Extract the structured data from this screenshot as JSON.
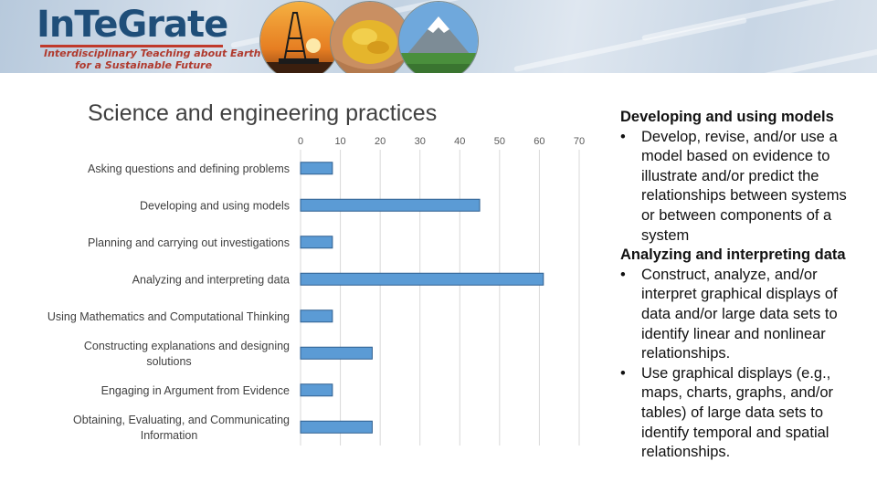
{
  "logo": {
    "name": "InTeGrate",
    "tagline_line1": "Interdisciplinary Teaching about Earth",
    "tagline_line2": "for a Sustainable Future"
  },
  "banner": {
    "photos": [
      "oil-rig-sunset-photo",
      "corn-kernels-in-hands-photo",
      "snowy-mountain-photo"
    ]
  },
  "chart_data": {
    "type": "bar",
    "orientation": "horizontal",
    "title": "Science and engineering practices",
    "categories": [
      "Asking questions and defining problems",
      "Developing and using models",
      "Planning and carrying out investigations",
      "Analyzing and interpreting data",
      "Using Mathematics and Computational Thinking",
      "Constructing explanations and designing solutions",
      "Engaging in Argument from Evidence",
      "Obtaining, Evaluating, and Communicating Information"
    ],
    "values": [
      8,
      45,
      8,
      61,
      8,
      18,
      8,
      18
    ],
    "xlim": [
      0,
      70
    ],
    "xticks": [
      0,
      10,
      20,
      30,
      40,
      50,
      60,
      70
    ],
    "x_axis_position": "top",
    "grid": true,
    "bar_color": "#5b9bd5",
    "bar_edge_color": "#2f5f8f"
  },
  "right_text": {
    "blocks": [
      {
        "type": "heading",
        "text": "Developing and using models"
      },
      {
        "type": "bullet",
        "text": "Develop, revise, and/or use a model based on evidence to illustrate and/or predict the relationships between systems or between components of a system"
      },
      {
        "type": "heading",
        "text": "Analyzing and interpreting data"
      },
      {
        "type": "bullet",
        "text": "Construct, analyze, and/or interpret graphical displays of data and/or large data sets to identify linear and nonlinear relationships."
      },
      {
        "type": "bullet",
        "text": "Use graphical displays (e.g., maps, charts, graphs, and/or tables) of large data sets to identify temporal and spatial relationships."
      }
    ]
  }
}
